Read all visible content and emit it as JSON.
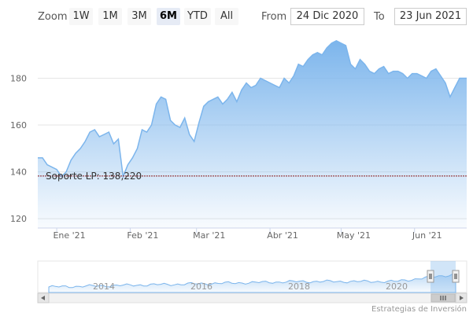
{
  "toolbar": {
    "zoom_label": "Zoom",
    "buttons": [
      {
        "label": "1W",
        "active": false
      },
      {
        "label": "1M",
        "active": false
      },
      {
        "label": "3M",
        "active": false
      },
      {
        "label": "6M",
        "active": true
      },
      {
        "label": "YTD",
        "active": false
      },
      {
        "label": "All",
        "active": false
      }
    ],
    "from_label": "From",
    "from_value": "24 Dic 2020",
    "to_label": "To",
    "to_value": "23 Jun 2021"
  },
  "credit": "Estrategias de Inversión",
  "colors": {
    "line": "#7cb5ec",
    "fill_top": "#7cb5ec",
    "plotline": "#8b1a1a",
    "grid": "#e6e6e6"
  },
  "chart_data": {
    "type": "area",
    "title": "",
    "xlabel": "",
    "ylabel": "",
    "ylim": [
      116,
      200
    ],
    "yticks": [
      120,
      140,
      160,
      180
    ],
    "xlim": [
      "2020-12-24",
      "2021-06-23"
    ],
    "xticks": [
      {
        "date": "2021-01-01",
        "label": "Ene '21"
      },
      {
        "date": "2021-02-01",
        "label": "Feb '21"
      },
      {
        "date": "2021-03-01",
        "label": "Mar '21"
      },
      {
        "date": "2021-04-01",
        "label": "Abr '21"
      },
      {
        "date": "2021-05-01",
        "label": "May '21"
      },
      {
        "date": "2021-06-01",
        "label": "Jun '21"
      }
    ],
    "grid": true,
    "plot_line": {
      "value": 138.22,
      "label": "Soporte LP: 138,220"
    },
    "series": [
      {
        "x": [
          "2020-12-24",
          "2020-12-26",
          "2020-12-28",
          "2020-12-30",
          "2021-01-01",
          "2021-01-03",
          "2021-01-05",
          "2021-01-07",
          "2021-01-09",
          "2021-01-11",
          "2021-01-13",
          "2021-01-15",
          "2021-01-17",
          "2021-01-19",
          "2021-01-21",
          "2021-01-23",
          "2021-01-25",
          "2021-01-27",
          "2021-01-29",
          "2021-01-31",
          "2021-02-02",
          "2021-02-04",
          "2021-02-06",
          "2021-02-08",
          "2021-02-10",
          "2021-02-12",
          "2021-02-14",
          "2021-02-16",
          "2021-02-18",
          "2021-02-20",
          "2021-02-22",
          "2021-02-24",
          "2021-02-26",
          "2021-02-28",
          "2021-03-02",
          "2021-03-04",
          "2021-03-06",
          "2021-03-08",
          "2021-03-10",
          "2021-03-12",
          "2021-03-14",
          "2021-03-16",
          "2021-03-18",
          "2021-03-20",
          "2021-03-22",
          "2021-03-24",
          "2021-03-26",
          "2021-03-28",
          "2021-03-30",
          "2021-04-01",
          "2021-04-03",
          "2021-04-05",
          "2021-04-07",
          "2021-04-09",
          "2021-04-11",
          "2021-04-13",
          "2021-04-15",
          "2021-04-17",
          "2021-04-19",
          "2021-04-21",
          "2021-04-23",
          "2021-04-25",
          "2021-04-27",
          "2021-04-29",
          "2021-05-01",
          "2021-05-03",
          "2021-05-05",
          "2021-05-07",
          "2021-05-09",
          "2021-05-11",
          "2021-05-13",
          "2021-05-15",
          "2021-05-17",
          "2021-05-19",
          "2021-05-21",
          "2021-05-23",
          "2021-05-25",
          "2021-05-27",
          "2021-05-29",
          "2021-05-31",
          "2021-06-02",
          "2021-06-04",
          "2021-06-06",
          "2021-06-08",
          "2021-06-10",
          "2021-06-12",
          "2021-06-14",
          "2021-06-16",
          "2021-06-18",
          "2021-06-20",
          "2021-06-23"
        ],
        "values": [
          146,
          146,
          143,
          142,
          141,
          138,
          140,
          145,
          148,
          150,
          153,
          157,
          158,
          155,
          156,
          157,
          152,
          154,
          138,
          143,
          146,
          150,
          158,
          157,
          160,
          169,
          172,
          171,
          162,
          160,
          159,
          163,
          156,
          153,
          161,
          168,
          170,
          171,
          172,
          169,
          171,
          174,
          170,
          175,
          178,
          176,
          177,
          180,
          179,
          178,
          177,
          176,
          180,
          178,
          181,
          186,
          185,
          188,
          190,
          191,
          190,
          193,
          195,
          196,
          195,
          194,
          186,
          184,
          188,
          186,
          183,
          182,
          184,
          185,
          182,
          183,
          183,
          182,
          180,
          182,
          182,
          181,
          180,
          183,
          184,
          181,
          178,
          172,
          176,
          180,
          180
        ]
      }
    ],
    "navigator": {
      "year_labels": [
        "2014",
        "2016",
        "2018",
        "2020"
      ]
    }
  }
}
